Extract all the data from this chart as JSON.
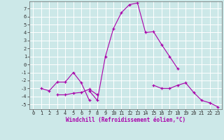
{
  "xlabel": "Windchill (Refroidissement éolien,°C)",
  "background_color": "#cce8e8",
  "grid_color": "#ffffff",
  "line_color": "#aa00aa",
  "xlim": [
    -0.5,
    23.5
  ],
  "ylim": [
    -5.6,
    7.9
  ],
  "xticks": [
    0,
    1,
    2,
    3,
    4,
    5,
    6,
    7,
    8,
    9,
    10,
    11,
    12,
    13,
    14,
    15,
    16,
    17,
    18,
    19,
    20,
    21,
    22,
    23
  ],
  "yticks": [
    -5,
    -4,
    -3,
    -2,
    -1,
    0,
    1,
    2,
    3,
    4,
    5,
    6,
    7
  ],
  "series": [
    [
      null,
      -3.0,
      -3.3,
      -2.2,
      -2.2,
      -1.0,
      -2.3,
      -4.5,
      null,
      null,
      null,
      null,
      null,
      null,
      null,
      null,
      null,
      null,
      null,
      null,
      null,
      null,
      null,
      null
    ],
    [
      null,
      null,
      null,
      -3.8,
      -3.8,
      -3.6,
      -3.5,
      -3.1,
      -3.8,
      null,
      null,
      null,
      null,
      null,
      null,
      null,
      null,
      null,
      null,
      null,
      null,
      null,
      null,
      null
    ],
    [
      null,
      null,
      null,
      null,
      null,
      null,
      null,
      -3.3,
      -4.5,
      1.0,
      4.5,
      6.5,
      7.5,
      7.7,
      4.0,
      4.1,
      2.5,
      1.0,
      -0.5,
      null,
      null,
      null,
      null,
      null
    ],
    [
      null,
      null,
      null,
      null,
      null,
      null,
      null,
      null,
      null,
      null,
      null,
      null,
      null,
      null,
      null,
      -2.6,
      -3.0,
      -3.0,
      -2.6,
      -2.3,
      -3.5,
      -4.5,
      -4.8,
      -5.3
    ]
  ],
  "tick_fontsize": 5.0,
  "xlabel_fontsize": 5.5
}
